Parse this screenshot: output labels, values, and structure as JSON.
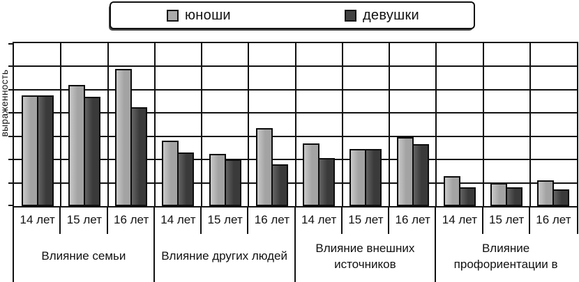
{
  "legend": {
    "items": [
      {
        "label": "юноши",
        "color": "#ababab"
      },
      {
        "label": "девушки",
        "color": "#414141"
      }
    ]
  },
  "colors": {
    "line": "#111111",
    "background": "#ffffff",
    "boys_fill_light": "#c9c9c9",
    "boys_fill": "#a3a3a3",
    "girls_fill_light": "#646464",
    "girls_fill": "#3a3a3a"
  },
  "chart_data": {
    "type": "bar",
    "title": "",
    "xlabel": "",
    "ylabel": "выраженность",
    "ylim": [
      0,
      7
    ],
    "grid": true,
    "gridline_intervals": 7,
    "legend_position": "top",
    "categories": [
      "14 лет",
      "15 лет",
      "16 лет",
      "14 лет",
      "15 лет",
      "16 лет",
      "14 лет",
      "15 лет",
      "16 лет",
      "14 лет",
      "15 лет",
      "16 лет"
    ],
    "groups": [
      {
        "label": "Влияние семьи",
        "label_lines": [
          "Влияние семьи"
        ]
      },
      {
        "label": "Влияние других людей",
        "label_lines": [
          "Влияние других людей"
        ]
      },
      {
        "label": "Влияние внешних источников",
        "label_lines": [
          "Влияние внешних",
          "источников"
        ]
      },
      {
        "label": "Влияние профориентации в",
        "label_lines": [
          "Влияние",
          "профориентации в"
        ]
      }
    ],
    "series": [
      {
        "name": "юноши",
        "color": "#ababab",
        "values": [
          4.75,
          5.2,
          5.9,
          2.8,
          2.25,
          3.35,
          2.7,
          2.45,
          2.95,
          1.3,
          1.0,
          1.1
        ]
      },
      {
        "name": "девушки",
        "color": "#414141",
        "values": [
          4.75,
          4.7,
          4.25,
          2.3,
          2.0,
          1.8,
          2.05,
          2.45,
          2.65,
          0.8,
          0.8,
          0.72
        ]
      }
    ]
  }
}
